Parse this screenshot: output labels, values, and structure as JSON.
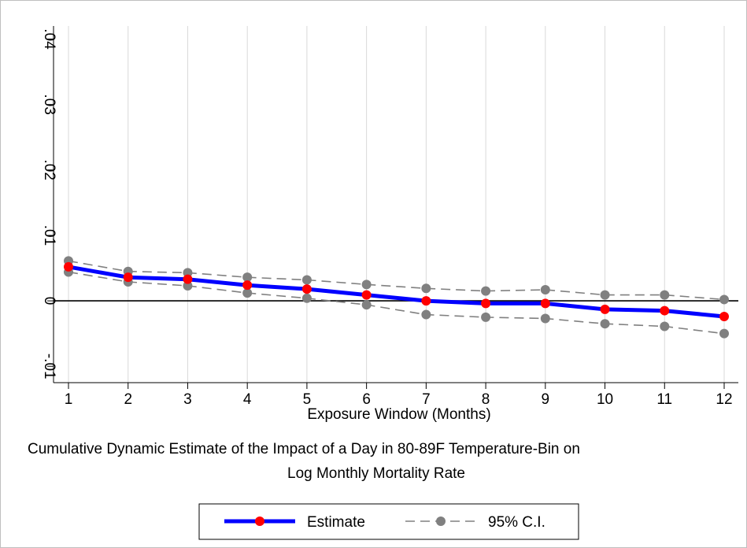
{
  "chart_data": {
    "type": "line",
    "x": [
      1,
      2,
      3,
      4,
      5,
      6,
      7,
      8,
      9,
      10,
      11,
      12
    ],
    "series": [
      {
        "name": "Estimate",
        "role": "estimate",
        "color": "#0000ff",
        "marker_color": "#ff0000",
        "values": [
          0.0052,
          0.0036,
          0.0033,
          0.0024,
          0.0018,
          0.0009,
          0.0,
          -0.0004,
          -0.0004,
          -0.0013,
          -0.0015,
          -0.0024
        ]
      },
      {
        "name": "95% C.I.",
        "role": "ci_upper",
        "color": "#808080",
        "values": [
          0.0061,
          0.0045,
          0.0043,
          0.0036,
          0.0032,
          0.0025,
          0.0019,
          0.0015,
          0.0017,
          0.0009,
          0.0009,
          0.0002
        ]
      },
      {
        "name": "95% C.I.",
        "role": "ci_lower",
        "color": "#808080",
        "values": [
          0.0044,
          0.0029,
          0.0023,
          0.0012,
          0.0004,
          -0.0006,
          -0.0021,
          -0.0025,
          -0.0027,
          -0.0035,
          -0.0039,
          -0.005
        ]
      }
    ],
    "xlabel": "Exposure Window (Months)",
    "ylabel": "",
    "note_lines": [
      "Cumulative Dynamic Estimate of the Impact of a Day in 80-89F Temperature-Bin on",
      "Log Monthly Mortality Rate"
    ],
    "xlim": [
      1,
      12
    ],
    "ylim": [
      -0.0125,
      0.042
    ],
    "x_ticks": [
      1,
      2,
      3,
      4,
      5,
      6,
      7,
      8,
      9,
      10,
      11,
      12
    ],
    "x_tick_labels": [
      "1",
      "2",
      "3",
      "4",
      "5",
      "6",
      "7",
      "8",
      "9",
      "10",
      "11",
      "12"
    ],
    "y_ticks": [
      -0.01,
      0,
      0.01,
      0.02,
      0.03,
      0.04
    ],
    "y_tick_labels": [
      "-.01",
      "0",
      ".01",
      ".02",
      ".03",
      ".04"
    ],
    "grid": "vertical",
    "reference_line_y": 0,
    "legend": {
      "position": "bottom-center",
      "entries": [
        "Estimate",
        "95% C.I."
      ]
    }
  }
}
